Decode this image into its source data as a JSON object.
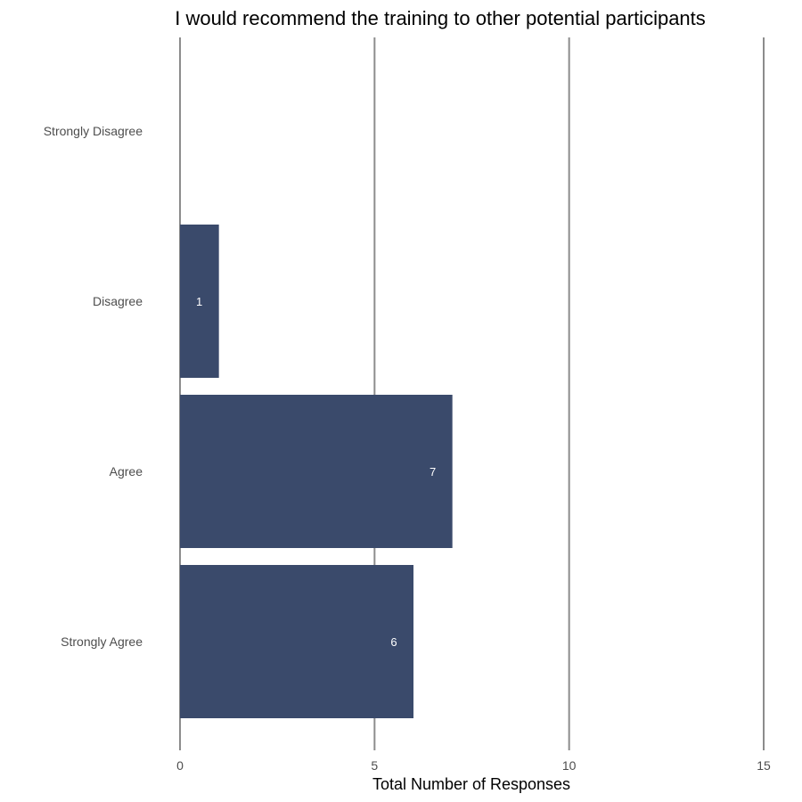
{
  "chart_data": {
    "type": "bar",
    "orientation": "horizontal",
    "title": "I would recommend the training to other potential participants",
    "xlabel": "Total Number of Responses",
    "ylabel": "",
    "categories": [
      "Strongly Disagree",
      "Disagree",
      "Agree",
      "Strongly Agree"
    ],
    "values": [
      0,
      1,
      7,
      6
    ],
    "data_labels": [
      "",
      "1",
      "7",
      "6"
    ],
    "xlim": [
      0,
      15
    ],
    "x_ticks": [
      0,
      5,
      10,
      15
    ],
    "x_tick_labels": [
      "0",
      "5",
      "10",
      "15"
    ],
    "grid": "vertical major lines",
    "legend": "none",
    "colors": {
      "bar": "#3a4a6b",
      "grid": "#8c8c8c",
      "data_label": "#ffffff",
      "tick_label": "#4d4d4d",
      "title": "#000000"
    }
  }
}
